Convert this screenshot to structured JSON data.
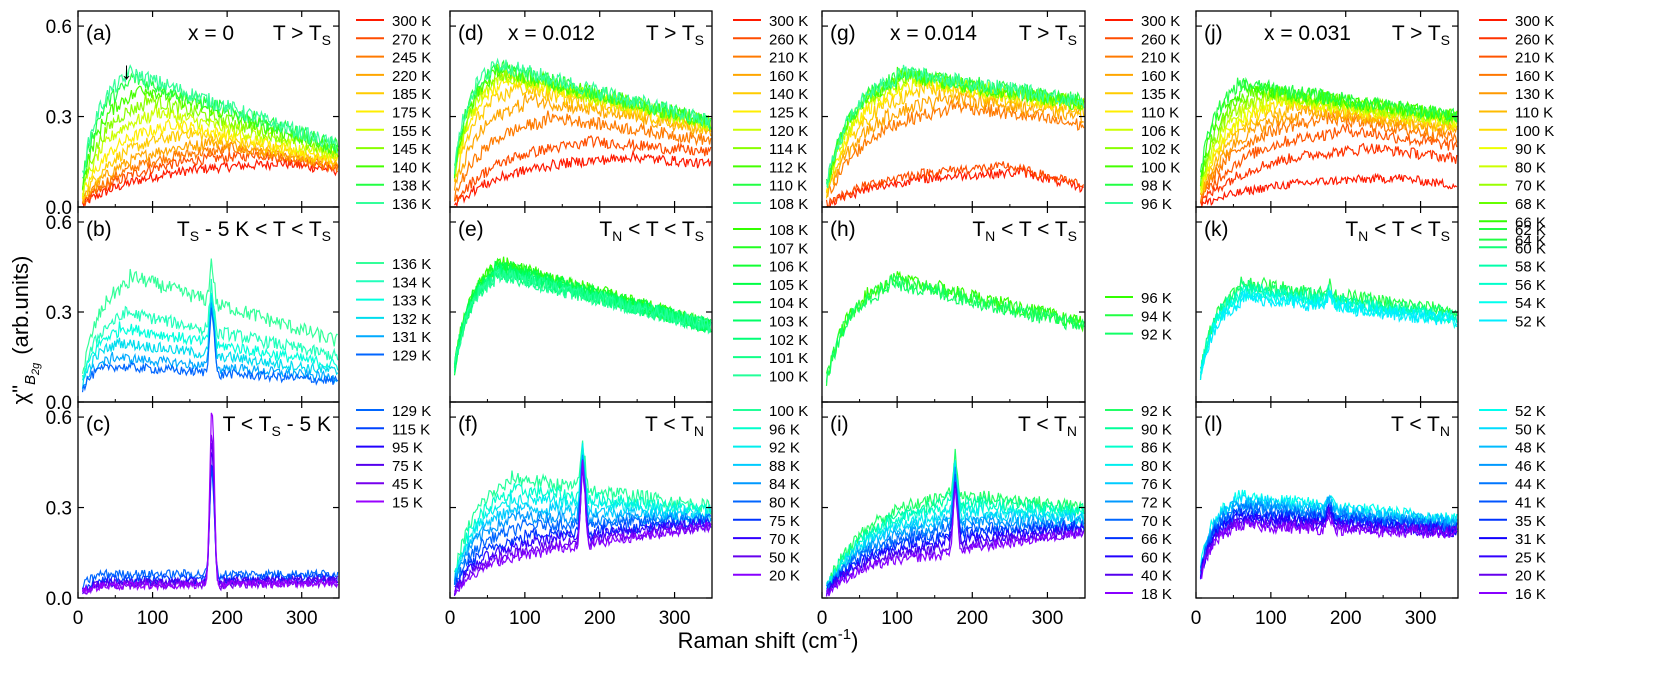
{
  "figure": {
    "ylabel_main": "χ\"",
    "ylabel_sub": "B",
    "ylabel_subsub": "2g",
    "ylabel_units": "(arb.units)",
    "xlabel_main": "Raman shift (cm",
    "xlabel_sup": "-1",
    "xlabel_close": ")"
  },
  "chart_data": {
    "type": "line",
    "xlim": [
      0,
      350
    ],
    "ylim": [
      0,
      0.65
    ],
    "xticks": [
      "0",
      "100",
      "200",
      "300"
    ],
    "yticks": [
      "0.0",
      "0.3",
      "0.6"
    ],
    "compositions": [
      {
        "label": "x = 0",
        "ts": 136,
        "tn": 129
      },
      {
        "label": "x = 0.012",
        "ts": 108,
        "tn": 100
      },
      {
        "label": "x = 0.014",
        "ts": 96,
        "tn": 92
      },
      {
        "label": "x = 0.031",
        "ts": 64,
        "tn": 52
      }
    ],
    "panels": [
      {
        "col": 0,
        "row": 0,
        "letter": "(a)",
        "comp": "x = 0",
        "regime": "T > T_S",
        "legend": [
          "300 K",
          "270 K",
          "245 K",
          "220 K",
          "185 K",
          "175 K",
          "155 K",
          "145 K",
          "140 K",
          "138 K",
          "136 K"
        ],
        "colors": [
          "#ff1a00",
          "#ff4d00",
          "#ff7a00",
          "#ffa600",
          "#ffcc00",
          "#ffee00",
          "#ccff00",
          "#88ff00",
          "#44ff00",
          "#22ff44",
          "#33ff99"
        ],
        "peak_values": [
          0.15,
          0.18,
          0.2,
          0.22,
          0.25,
          0.28,
          0.32,
          0.36,
          0.4,
          0.43,
          0.45
        ],
        "peak_positions": [
          260,
          230,
          200,
          170,
          140,
          120,
          100,
          90,
          80,
          70,
          65
        ],
        "tail_values": [
          0.12,
          0.13,
          0.13,
          0.14,
          0.15,
          0.16,
          0.17,
          0.18,
          0.19,
          0.2,
          0.2
        ],
        "arrow": "↓",
        "arrow_at": 65
      },
      {
        "col": 0,
        "row": 1,
        "letter": "(b)",
        "comp": "",
        "regime": "T_S - 5 K < T < T_S",
        "legend": [
          "136 K",
          "134 K",
          "133 K",
          "132 K",
          "131 K",
          "129 K"
        ],
        "colors": [
          "#33ff99",
          "#22ffbb",
          "#00ffdd",
          "#00ddee",
          "#00aaff",
          "#0066ff"
        ],
        "peak_values": [
          0.42,
          0.3,
          0.25,
          0.2,
          0.15,
          0.12
        ],
        "peak_positions": [
          70,
          60,
          55,
          50,
          45,
          40
        ],
        "tail_values": [
          0.2,
          0.15,
          0.12,
          0.1,
          0.08,
          0.07
        ],
        "phonon_at": 180,
        "phonon_height": 0.25
      },
      {
        "col": 0,
        "row": 2,
        "letter": "(c)",
        "comp": "",
        "regime": "T < T_S - 5 K",
        "legend": [
          "129 K",
          "115 K",
          "95 K",
          "75 K",
          "45 K",
          "15 K"
        ],
        "colors": [
          "#0066ff",
          "#0044ff",
          "#2200ff",
          "#5500ee",
          "#7700ee",
          "#9900ff"
        ],
        "peak_values": [
          0.08,
          0.06,
          0.05,
          0.05,
          0.04,
          0.04
        ],
        "peak_positions": [
          30,
          30,
          30,
          30,
          30,
          30
        ],
        "tail_values": [
          0.08,
          0.07,
          0.06,
          0.06,
          0.05,
          0.05
        ],
        "phonon_at": 180,
        "phonon_height": 0.62
      },
      {
        "col": 1,
        "row": 0,
        "letter": "(d)",
        "comp": "x = 0.012",
        "regime": "T > T_S",
        "legend": [
          "300 K",
          "260 K",
          "210 K",
          "160 K",
          "140 K",
          "125 K",
          "120 K",
          "114 K",
          "112 K",
          "110 K",
          "108 K"
        ],
        "colors": [
          "#ff1a00",
          "#ff4d00",
          "#ff7a00",
          "#ffa600",
          "#ffcc00",
          "#ffee00",
          "#ccff00",
          "#88ff00",
          "#44ff00",
          "#22ff44",
          "#33ff99"
        ],
        "peak_values": [
          0.17,
          0.22,
          0.3,
          0.36,
          0.4,
          0.43,
          0.44,
          0.45,
          0.46,
          0.47,
          0.48
        ],
        "peak_positions": [
          230,
          180,
          130,
          100,
          80,
          70,
          65,
          60,
          60,
          55,
          55
        ],
        "tail_values": [
          0.14,
          0.18,
          0.22,
          0.25,
          0.26,
          0.27,
          0.27,
          0.28,
          0.28,
          0.28,
          0.28
        ]
      },
      {
        "col": 1,
        "row": 1,
        "letter": "(e)",
        "comp": "",
        "regime": "T_N < T < T_S",
        "legend": [
          "108 K",
          "107 K",
          "106 K",
          "105 K",
          "104 K",
          "103 K",
          "102 K",
          "101 K",
          "100 K"
        ],
        "colors": [
          "#33ff00",
          "#22ff22",
          "#11ff33",
          "#00ff44",
          "#00ff55",
          "#00ff66",
          "#00ff77",
          "#11ff88",
          "#22ff99"
        ],
        "peak_values": [
          0.47,
          0.46,
          0.46,
          0.45,
          0.45,
          0.44,
          0.44,
          0.43,
          0.43
        ],
        "peak_positions": [
          60,
          60,
          60,
          60,
          60,
          60,
          60,
          60,
          60
        ],
        "tail_values": [
          0.25,
          0.25,
          0.25,
          0.25,
          0.25,
          0.25,
          0.25,
          0.25,
          0.25
        ]
      },
      {
        "col": 1,
        "row": 2,
        "letter": "(f)",
        "comp": "",
        "regime": "T < T_N",
        "legend": [
          "100 K",
          "96 K",
          "92 K",
          "88 K",
          "84 K",
          "80 K",
          "75 K",
          "70 K",
          "50 K",
          "20 K"
        ],
        "colors": [
          "#22ff99",
          "#00ffcc",
          "#00eeee",
          "#00ccff",
          "#0099ff",
          "#0066ff",
          "#0033ff",
          "#3300ff",
          "#6600ee",
          "#8800ff"
        ],
        "peak_values": [
          0.4,
          0.36,
          0.33,
          0.3,
          0.27,
          0.24,
          0.21,
          0.19,
          0.17,
          0.16
        ],
        "peak_positions": [
          80,
          80,
          80,
          80,
          80,
          90,
          100,
          110,
          120,
          130
        ],
        "tail_values": [
          0.3,
          0.29,
          0.28,
          0.27,
          0.26,
          0.26,
          0.25,
          0.25,
          0.24,
          0.24
        ],
        "phonon_at": 178,
        "phonon_height": 0.28
      },
      {
        "col": 2,
        "row": 0,
        "letter": "(g)",
        "comp": "x = 0.014",
        "regime": "T > T_S",
        "legend": [
          "300 K",
          "260 K",
          "210 K",
          "160 K",
          "135 K",
          "110 K",
          "106 K",
          "102 K",
          "100 K",
          "98 K",
          "96 K"
        ],
        "colors": [
          "#ff1a00",
          "#ff4d00",
          "#ff7a00",
          "#ffa600",
          "#ffcc00",
          "#ffee00",
          "#ccff00",
          "#88ff00",
          "#44ff00",
          "#22ff44",
          "#33ff99"
        ],
        "peak_values": [
          0.12,
          0.14,
          0.34,
          0.37,
          0.4,
          0.42,
          0.43,
          0.44,
          0.44,
          0.45,
          0.45
        ],
        "peak_positions": [
          260,
          240,
          170,
          150,
          130,
          120,
          110,
          100,
          100,
          100,
          100
        ],
        "tail_values": [
          0.06,
          0.07,
          0.27,
          0.3,
          0.32,
          0.33,
          0.34,
          0.34,
          0.34,
          0.35,
          0.35
        ]
      },
      {
        "col": 2,
        "row": 1,
        "letter": "(h)",
        "comp": "",
        "regime": "T_N < T < T_S",
        "legend": [
          "96 K",
          "94 K",
          "92 K"
        ],
        "colors": [
          "#33ff00",
          "#22ff44",
          "#11ff66"
        ],
        "peak_values": [
          0.42,
          0.41,
          0.4
        ],
        "peak_positions": [
          90,
          90,
          90
        ],
        "tail_values": [
          0.26,
          0.26,
          0.25
        ]
      },
      {
        "col": 2,
        "row": 2,
        "letter": "(i)",
        "comp": "",
        "regime": "T < T_N",
        "legend": [
          "92 K",
          "90 K",
          "86 K",
          "80 K",
          "76 K",
          "72 K",
          "70 K",
          "66 K",
          "60 K",
          "40 K",
          "18 K"
        ],
        "colors": [
          "#22ff66",
          "#00ff99",
          "#00ffcc",
          "#00eeee",
          "#00ccff",
          "#0099ff",
          "#0066ff",
          "#0033ff",
          "#2200ff",
          "#5500ee",
          "#8800ff"
        ],
        "peak_values": [
          0.35,
          0.33,
          0.31,
          0.29,
          0.27,
          0.25,
          0.23,
          0.21,
          0.19,
          0.17,
          0.15
        ],
        "peak_positions": [
          160,
          160,
          160,
          160,
          160,
          160,
          160,
          160,
          160,
          160,
          160
        ],
        "tail_values": [
          0.3,
          0.29,
          0.28,
          0.27,
          0.26,
          0.25,
          0.24,
          0.24,
          0.23,
          0.22,
          0.22
        ],
        "phonon_at": 178,
        "phonon_height": 0.22
      },
      {
        "col": 3,
        "row": 0,
        "letter": "(j)",
        "comp": "x = 0.031",
        "regime": "T > T_S",
        "legend": [
          "300 K",
          "260 K",
          "210 K",
          "160 K",
          "130 K",
          "110 K",
          "100 K",
          "90 K",
          "80 K",
          "70 K",
          "68 K",
          "66 K",
          "64 K"
        ],
        "colors": [
          "#ff1a00",
          "#ff3300",
          "#ff5500",
          "#ff7700",
          "#ff9900",
          "#ffbb00",
          "#ffdd00",
          "#eeff00",
          "#ccff00",
          "#99ff00",
          "#66ff00",
          "#33ff00",
          "#22ff44"
        ],
        "peak_values": [
          0.1,
          0.2,
          0.26,
          0.3,
          0.32,
          0.33,
          0.35,
          0.36,
          0.37,
          0.38,
          0.39,
          0.4,
          0.41
        ],
        "peak_positions": [
          260,
          220,
          190,
          160,
          140,
          120,
          110,
          100,
          90,
          80,
          70,
          60,
          55
        ],
        "tail_values": [
          0.07,
          0.16,
          0.2,
          0.23,
          0.25,
          0.26,
          0.27,
          0.28,
          0.29,
          0.29,
          0.3,
          0.3,
          0.3
        ]
      },
      {
        "col": 3,
        "row": 1,
        "letter": "(k)",
        "comp": "",
        "regime": "T_N < T < T_S",
        "legend": [
          "62 K",
          "60 K",
          "58 K",
          "56 K",
          "54 K",
          "52 K"
        ],
        "colors": [
          "#22ff44",
          "#11ff77",
          "#00ffaa",
          "#00ffcc",
          "#00ffee",
          "#00eeff"
        ],
        "peak_values": [
          0.4,
          0.39,
          0.38,
          0.37,
          0.36,
          0.35
        ],
        "peak_positions": [
          60,
          60,
          60,
          60,
          60,
          60
        ],
        "tail_values": [
          0.3,
          0.29,
          0.28,
          0.28,
          0.27,
          0.27
        ],
        "phonon_at": 178,
        "phonon_height": 0.05
      },
      {
        "col": 3,
        "row": 2,
        "letter": "(l)",
        "comp": "",
        "regime": "T < T_N",
        "legend": [
          "52 K",
          "50 K",
          "48 K",
          "46 K",
          "44 K",
          "41 K",
          "35 K",
          "31 K",
          "25 K",
          "20 K",
          "16 K"
        ],
        "colors": [
          "#00ffee",
          "#00ddff",
          "#00bbff",
          "#0099ff",
          "#0077ff",
          "#0055ff",
          "#0033ff",
          "#1100ff",
          "#3300ff",
          "#6600ee",
          "#8800ff"
        ],
        "peak_values": [
          0.34,
          0.33,
          0.32,
          0.31,
          0.3,
          0.29,
          0.28,
          0.27,
          0.26,
          0.25,
          0.24
        ],
        "peak_positions": [
          50,
          50,
          50,
          50,
          50,
          50,
          50,
          50,
          50,
          50,
          50
        ],
        "tail_values": [
          0.26,
          0.25,
          0.25,
          0.24,
          0.24,
          0.23,
          0.23,
          0.22,
          0.22,
          0.22,
          0.21
        ],
        "phonon_at": 178,
        "phonon_height": 0.05
      }
    ]
  }
}
